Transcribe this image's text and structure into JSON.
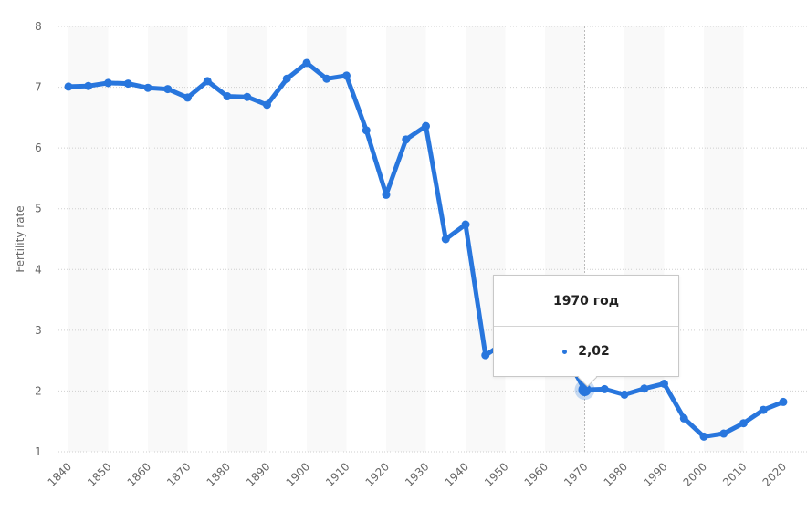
{
  "chart_data": {
    "type": "line",
    "title": "",
    "xlabel": "",
    "ylabel": "Fertility rate",
    "ylim": [
      1,
      8
    ],
    "yticks": [
      1,
      2,
      3,
      4,
      5,
      6,
      7,
      8
    ],
    "xticks": [
      "1840",
      "1850",
      "1860",
      "1870",
      "1880",
      "1890",
      "1900",
      "1910",
      "1920",
      "1930",
      "1940",
      "1950",
      "1960",
      "1970",
      "1980",
      "1990",
      "2000",
      "2010",
      "2020"
    ],
    "grid": true,
    "legend": "none",
    "color": "#2876dd",
    "series": [
      {
        "name": "Fertility rate",
        "x": [
          1840,
          1845,
          1850,
          1855,
          1860,
          1865,
          1870,
          1875,
          1880,
          1885,
          1890,
          1895,
          1900,
          1905,
          1910,
          1915,
          1920,
          1925,
          1930,
          1935,
          1940,
          1945,
          1950,
          1955,
          1960,
          1965,
          1970,
          1975,
          1980,
          1985,
          1990,
          1995,
          2000,
          2005,
          2010,
          2015,
          2020
        ],
        "values": [
          7.01,
          7.02,
          7.07,
          7.06,
          6.99,
          6.97,
          6.83,
          7.1,
          6.85,
          6.84,
          6.71,
          7.14,
          7.4,
          7.14,
          7.19,
          6.29,
          5.23,
          6.14,
          6.36,
          4.5,
          4.74,
          2.59,
          2.8,
          2.9,
          2.8,
          2.6,
          2.02,
          2.03,
          1.94,
          2.04,
          2.12,
          1.55,
          1.25,
          1.3,
          1.47,
          1.69,
          1.82
        ]
      }
    ],
    "tooltip": {
      "year": 1970,
      "label": "1970 год",
      "value": "2,02"
    }
  },
  "tooltip": {
    "title": "1970 год",
    "value": "2,02"
  },
  "axis": {
    "ylabel": "Fertility rate"
  }
}
